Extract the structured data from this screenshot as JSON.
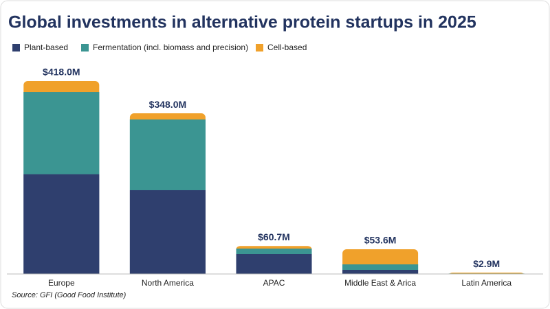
{
  "chart_data": {
    "type": "stacked-bar",
    "title": "Global investments in alternative protein startups in 2025",
    "categories": [
      "Europe",
      "North America",
      "APAC",
      "Middle East & Arica",
      "Latin America"
    ],
    "series": [
      {
        "name": "Plant-based",
        "color": "#2f3f6e",
        "values": [
          216,
          181.5,
          43.1,
          8.9,
          0.5
        ]
      },
      {
        "name": "Fermentation (incl. biomass and precision)",
        "color": "#3b9592",
        "values": [
          178,
          153.2,
          11.9,
          11.9,
          0.4
        ]
      },
      {
        "name": "Cell-based",
        "color": "#f0a12b",
        "values": [
          24,
          13.3,
          5.7,
          32.8,
          2.0
        ]
      }
    ],
    "totals": {
      "values": [
        418.0,
        348.0,
        60.7,
        53.6,
        2.9
      ],
      "value_labels": [
        "$418.0M",
        "$348.0M",
        "$60.7M",
        "$53.6M",
        "$2.9M"
      ]
    },
    "source": "Source: GFI (Good Food Institute)"
  }
}
